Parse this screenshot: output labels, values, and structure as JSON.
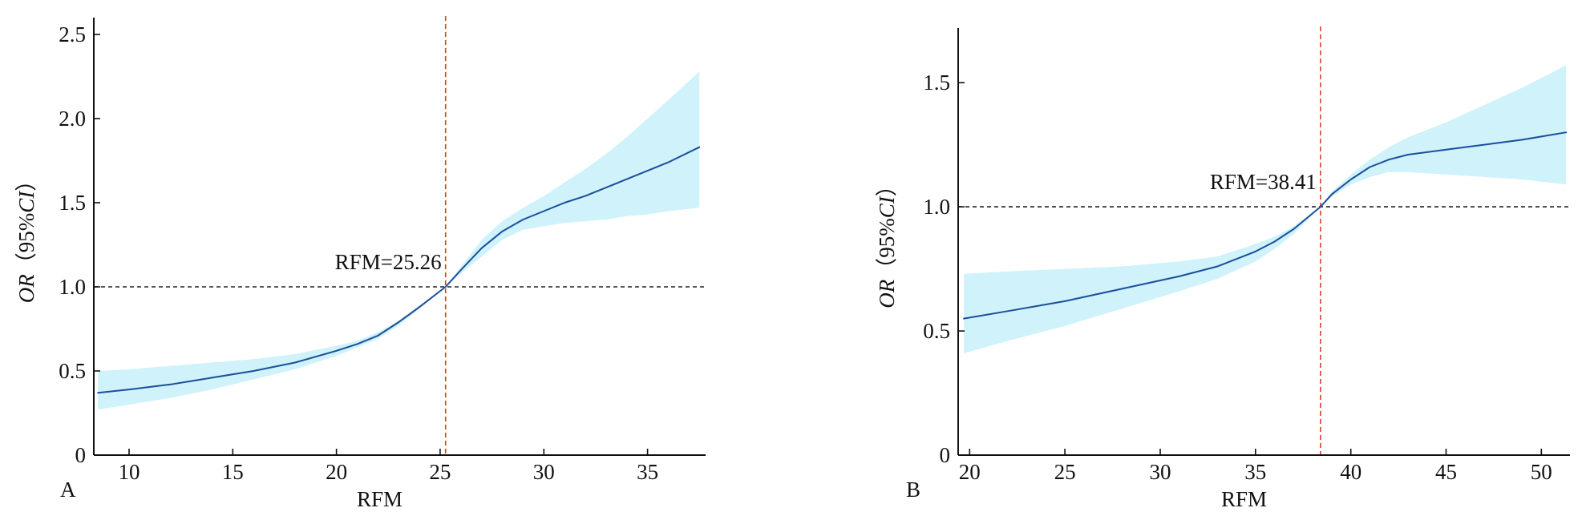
{
  "figure": {
    "panels": [
      "A",
      "B"
    ]
  },
  "chart_data": [
    {
      "panel_label": "A",
      "type": "line",
      "xlabel": "RFM",
      "ylabel_prefix": "OR",
      "ylabel_suffix": "（95%",
      "ylabel_ci": "CI",
      "ylabel_end": "）",
      "xlim": [
        8.3,
        37.8
      ],
      "ylim": [
        0,
        2.6
      ],
      "x_ticks": [
        10,
        15,
        20,
        25,
        30,
        35
      ],
      "y_ticks": [
        0,
        0.5,
        1.0,
        1.5,
        2.0,
        2.5
      ],
      "y_tick_labels": [
        "0",
        "0.5",
        "1.0",
        "1.5",
        "2.0",
        "2.5"
      ],
      "reference_y": 1.0,
      "cutoff_x": 25.26,
      "annotation": "RFM=25.26",
      "series": [
        {
          "role": "estimate",
          "x": [
            8.5,
            10,
            12,
            14,
            16,
            18,
            20,
            21,
            22,
            23,
            24,
            25.26,
            26,
            27,
            28,
            29,
            30,
            31,
            32,
            33,
            34,
            35,
            36,
            37.5
          ],
          "y": [
            0.37,
            0.39,
            0.42,
            0.46,
            0.5,
            0.55,
            0.62,
            0.66,
            0.71,
            0.79,
            0.88,
            1.0,
            1.1,
            1.23,
            1.33,
            1.4,
            1.45,
            1.5,
            1.54,
            1.59,
            1.64,
            1.69,
            1.74,
            1.83
          ]
        },
        {
          "role": "ci_lower",
          "x": [
            8.5,
            10,
            12,
            14,
            16,
            18,
            20,
            21,
            22,
            23,
            24,
            25.26,
            26,
            27,
            28,
            29,
            30,
            31,
            32,
            33,
            34,
            35,
            36,
            37.5
          ],
          "y": [
            0.27,
            0.3,
            0.34,
            0.39,
            0.45,
            0.51,
            0.59,
            0.64,
            0.69,
            0.77,
            0.87,
            1.0,
            1.08,
            1.18,
            1.28,
            1.34,
            1.36,
            1.38,
            1.39,
            1.4,
            1.42,
            1.43,
            1.45,
            1.47
          ]
        },
        {
          "role": "ci_upper",
          "x": [
            8.5,
            10,
            12,
            14,
            16,
            18,
            20,
            21,
            22,
            23,
            24,
            25.26,
            26,
            27,
            28,
            29,
            30,
            31,
            32,
            33,
            34,
            35,
            36,
            37.5
          ],
          "y": [
            0.5,
            0.51,
            0.53,
            0.55,
            0.57,
            0.6,
            0.65,
            0.68,
            0.73,
            0.8,
            0.89,
            1.0,
            1.12,
            1.28,
            1.39,
            1.47,
            1.54,
            1.62,
            1.7,
            1.79,
            1.89,
            2.0,
            2.11,
            2.28
          ]
        }
      ]
    },
    {
      "panel_label": "B",
      "type": "line",
      "xlabel": "RFM",
      "ylabel_prefix": "OR",
      "ylabel_suffix": "（95%",
      "ylabel_ci": "CI",
      "ylabel_end": "）",
      "xlim": [
        19.4,
        51.5
      ],
      "ylim": [
        0,
        1.72
      ],
      "x_ticks": [
        20,
        25,
        30,
        35,
        40,
        45,
        50
      ],
      "y_ticks": [
        0,
        0.5,
        1.0,
        1.5
      ],
      "y_tick_labels": [
        "0",
        "0.5",
        "1.0",
        "1.5"
      ],
      "reference_y": 1.0,
      "cutoff_x": 38.41,
      "annotation": "RFM=38.41",
      "series": [
        {
          "role": "estimate",
          "x": [
            19.7,
            22,
            25,
            28,
            31,
            33,
            35,
            36,
            37,
            38.41,
            39,
            40,
            41,
            42,
            43,
            45,
            47,
            49,
            51.3
          ],
          "y": [
            0.55,
            0.58,
            0.62,
            0.67,
            0.72,
            0.76,
            0.82,
            0.86,
            0.91,
            1.0,
            1.05,
            1.11,
            1.16,
            1.19,
            1.21,
            1.23,
            1.25,
            1.27,
            1.3
          ]
        },
        {
          "role": "ci_lower",
          "x": [
            19.7,
            22,
            25,
            28,
            31,
            33,
            35,
            36,
            37,
            38.41,
            39,
            40,
            41,
            42,
            43,
            45,
            47,
            49,
            51.3
          ],
          "y": [
            0.41,
            0.46,
            0.52,
            0.59,
            0.66,
            0.71,
            0.78,
            0.83,
            0.89,
            1.0,
            1.04,
            1.09,
            1.12,
            1.14,
            1.14,
            1.13,
            1.12,
            1.11,
            1.09
          ]
        },
        {
          "role": "ci_upper",
          "x": [
            19.7,
            22,
            25,
            28,
            31,
            33,
            35,
            36,
            37,
            38.41,
            39,
            40,
            41,
            42,
            43,
            45,
            47,
            49,
            51.3
          ],
          "y": [
            0.73,
            0.74,
            0.75,
            0.76,
            0.78,
            0.8,
            0.85,
            0.88,
            0.92,
            1.0,
            1.06,
            1.13,
            1.19,
            1.24,
            1.28,
            1.34,
            1.41,
            1.48,
            1.57
          ]
        }
      ]
    }
  ],
  "colors": {
    "estimate_line": "#1a4f9a",
    "ci_band": "#cff2fb",
    "cutoff_line": "#e23a2e",
    "reference_line": "#222222",
    "axis": "#111111"
  }
}
